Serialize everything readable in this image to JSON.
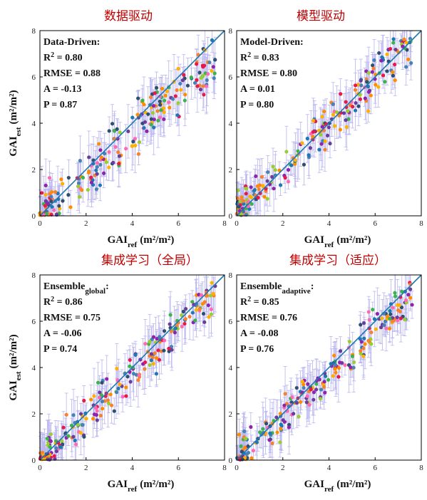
{
  "chart_data": [
    {
      "type": "scatter",
      "title": "数据驱动",
      "method_label": "Data-Driven",
      "method_sub": "",
      "r2": "0.80",
      "rmse": "0.88",
      "a": "-0.13",
      "p": "0.87",
      "xlim": [
        0,
        8
      ],
      "ylim": [
        0,
        8
      ],
      "xticks": [
        0,
        2,
        4,
        6,
        8
      ],
      "yticks": [
        0,
        2,
        4,
        6,
        8
      ],
      "xlabel_main": "GAI",
      "xlabel_sub": "ref",
      "xlabel_unit": "(m²/m²)",
      "ylabel_main": "GAI",
      "ylabel_sub": "est",
      "ylabel_unit": "(m²/m²)",
      "one_to_one_line": true,
      "error_bars": true,
      "seed": 11,
      "slope": 0.88,
      "spread": 0.7
    },
    {
      "type": "scatter",
      "title": "模型驱动",
      "method_label": "Model-Driven",
      "method_sub": "",
      "r2": "0.83",
      "rmse": "0.80",
      "a": "0.01",
      "p": "0.80",
      "xlim": [
        0,
        8
      ],
      "ylim": [
        0,
        8
      ],
      "xticks": [
        0,
        2,
        4,
        6,
        8
      ],
      "yticks": [
        0,
        2,
        4,
        6,
        8
      ],
      "xlabel_main": "GAI",
      "xlabel_sub": "ref",
      "xlabel_unit": "(m²/m²)",
      "ylabel_main": "",
      "ylabel_sub": "",
      "ylabel_unit": "",
      "one_to_one_line": true,
      "error_bars": true,
      "seed": 23,
      "slope": 1.0,
      "spread": 0.65
    },
    {
      "type": "scatter",
      "title": "集成学习（全局）",
      "method_label": "Ensemble",
      "method_sub": "global",
      "r2": "0.86",
      "rmse": "0.75",
      "a": "-0.06",
      "p": "0.74",
      "xlim": [
        0,
        8
      ],
      "ylim": [
        0,
        8
      ],
      "xticks": [
        0,
        2,
        4,
        6,
        8
      ],
      "yticks": [
        0,
        2,
        4,
        6,
        8
      ],
      "xlabel_main": "GAI",
      "xlabel_sub": "ref",
      "xlabel_unit": "(m²/m²)",
      "ylabel_main": "GAI",
      "ylabel_sub": "est",
      "ylabel_unit": "(m²/m²)",
      "one_to_one_line": true,
      "error_bars": true,
      "seed": 37,
      "slope": 0.95,
      "spread": 0.6
    },
    {
      "type": "scatter",
      "title": "集成学习（适应）",
      "method_label": "Ensemble",
      "method_sub": "adaptive",
      "r2": "0.85",
      "rmse": "0.76",
      "a": "-0.08",
      "p": "0.76",
      "xlim": [
        0,
        8
      ],
      "ylim": [
        0,
        8
      ],
      "xticks": [
        0,
        2,
        4,
        6,
        8
      ],
      "yticks": [
        0,
        2,
        4,
        6,
        8
      ],
      "xlabel_main": "GAI",
      "xlabel_sub": "ref",
      "xlabel_unit": "(m²/m²)",
      "ylabel_main": "",
      "ylabel_sub": "",
      "ylabel_unit": "",
      "one_to_one_line": true,
      "error_bars": true,
      "seed": 53,
      "slope": 0.94,
      "spread": 0.6
    }
  ],
  "colors": {
    "line": "#1f77b4",
    "errorbar": "#b9b6f0",
    "points": [
      "#e6194b",
      "#f58231",
      "#ffb000",
      "#1f77b4",
      "#2f4f6f",
      "#8e24aa",
      "#3cb44b",
      "#9acd32",
      "#ff69b4",
      "#ff8c00",
      "#4682b4",
      "#6a3d9a"
    ]
  }
}
